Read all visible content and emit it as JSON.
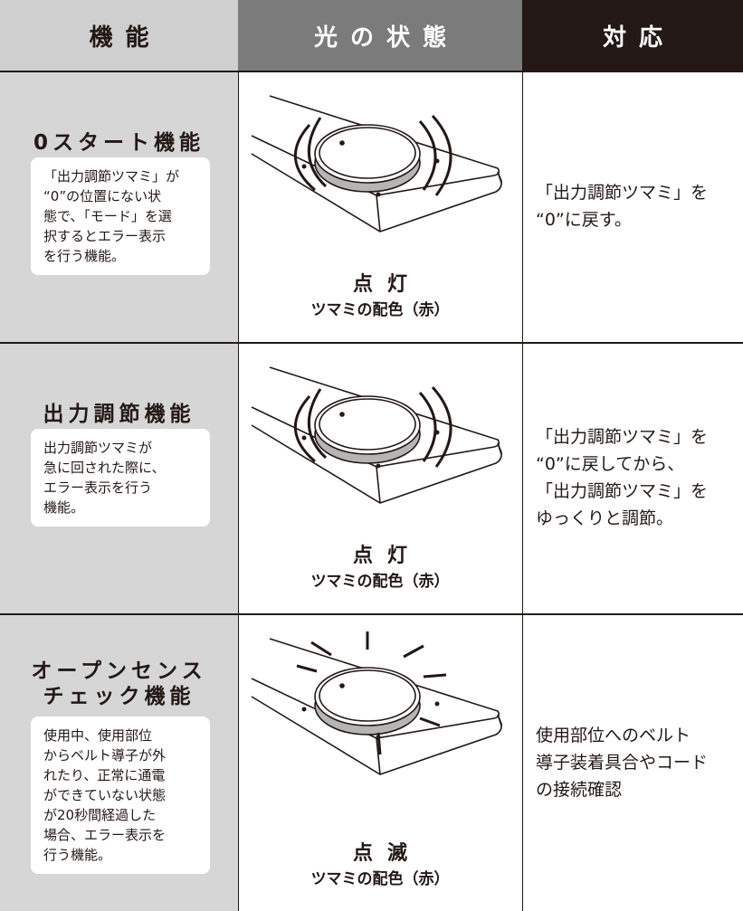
{
  "header": {
    "columns": [
      "機能",
      "光の状態",
      "対応"
    ]
  },
  "rows": [
    {
      "function": [
        "0スタート機能"
      ],
      "description": [
        "「出力調節ツマミ」が",
        "“0”の位置にない状",
        "態で、「モード」を選",
        "択するとエラー表示",
        "を行う機能。"
      ],
      "state": "点灯",
      "color_note": "ツマミの配色（赤）",
      "response": [
        "「出力調節ツマミ」を",
        "“0”に戻す。"
      ]
    },
    {
      "function": [
        "出力調節機能"
      ],
      "description": [
        "出力調節ツマミが",
        "急に回された際に、",
        "エラー表示を行う",
        "機能。"
      ],
      "state": "点灯",
      "color_note": "ツマミの配色（赤）",
      "response": [
        "「出力調節ツマミ」を",
        "“0”に戻してから、",
        "「出力調節ツマミ」を",
        "ゆっくりと調節。"
      ]
    },
    {
      "function": [
        "オープンセンス",
        "チェック機能"
      ],
      "description": [
        "使用中、使用部位",
        "からベルト導子が外",
        "れたり、正常に通電",
        "ができていない状態",
        "が20秒間経過した",
        "場合、エラー表示を",
        "行う機能。"
      ],
      "state": "点滅",
      "color_note": "ツマミの配色（赤）",
      "response": [
        "使用部位へのベルト",
        "導子装着具合やコード",
        "の接続確認"
      ]
    }
  ]
}
